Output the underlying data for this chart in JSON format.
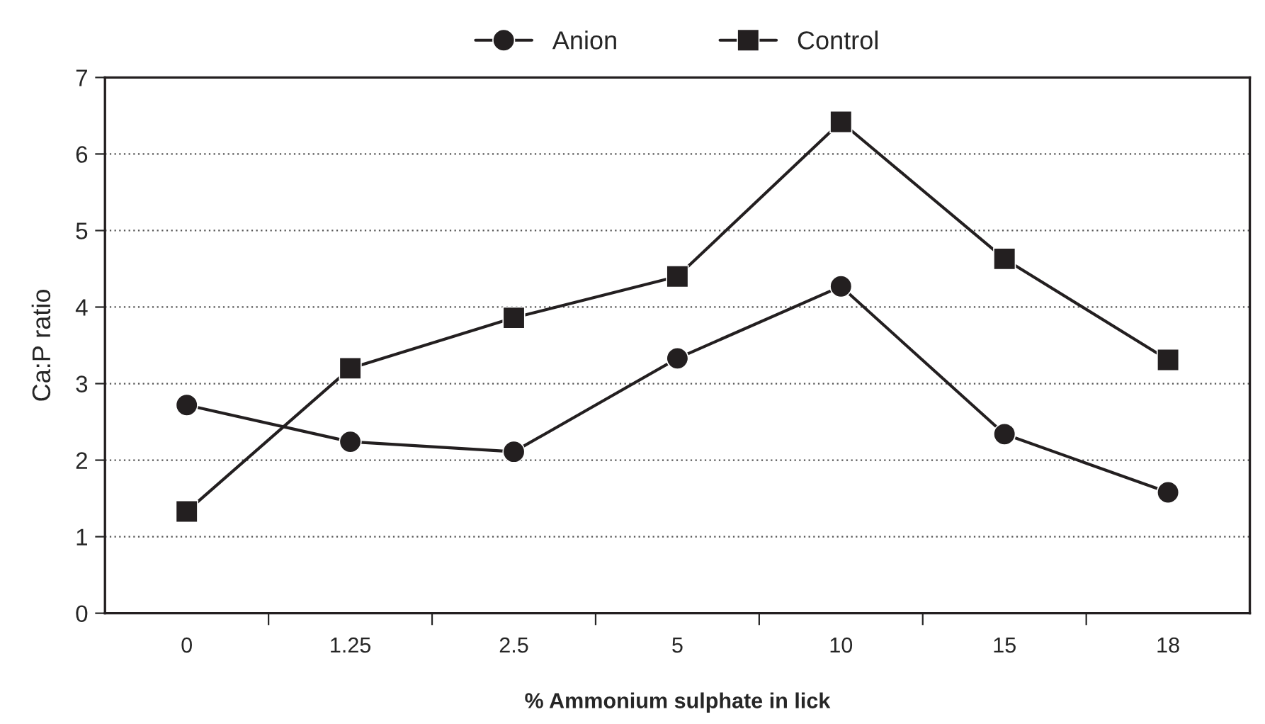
{
  "chart_data": {
    "type": "line",
    "xlabel": "% Ammonium sulphate in lick",
    "ylabel": "Ca:P ratio",
    "categories": [
      "0",
      "1.25",
      "2.5",
      "5",
      "10",
      "15",
      "18"
    ],
    "series": [
      {
        "name": "Anion",
        "color": "#231f20",
        "marker": "circle",
        "values": [
          2.72,
          2.24,
          2.11,
          3.33,
          4.27,
          2.34,
          1.58
        ]
      },
      {
        "name": "Control",
        "color": "#231f20",
        "marker": "square",
        "values": [
          1.33,
          3.2,
          3.86,
          4.4,
          6.42,
          4.63,
          3.31
        ]
      }
    ],
    "ylim": [
      0,
      7
    ],
    "yticks": [
      0,
      1,
      2,
      3,
      4,
      5,
      6,
      7
    ],
    "grid": "y",
    "legend": "top",
    "line_style": "solid"
  }
}
